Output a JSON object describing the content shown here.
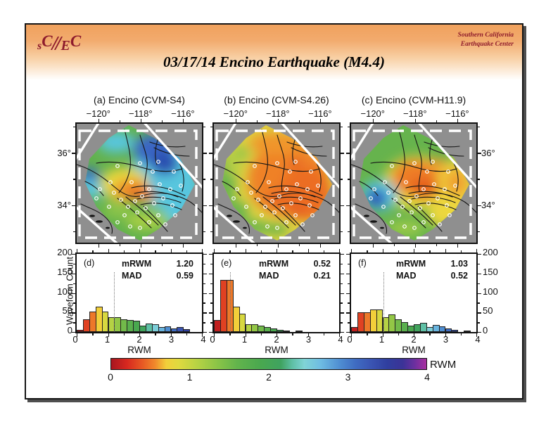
{
  "header": {
    "logo_part1": "s",
    "logo_part2": "C",
    "logo_part3": "E",
    "logo_part4": "C",
    "org_line1": "Southern California",
    "org_line2": "Earthquake Center",
    "title": "03/17/14 Encino Earthquake (M4.4)",
    "brand_color": "#8e1b2c"
  },
  "maps": {
    "lon_ticks": [
      "−120°",
      "−118°",
      "−116°"
    ],
    "lat_ticks": [
      "36°",
      "34°"
    ],
    "panels": [
      {
        "label": "(a) Encino (CVM-S4)"
      },
      {
        "label": "(b) Encino (CVM-S4.26)"
      },
      {
        "label": "(c) Encino (CVM-H11.9)"
      }
    ]
  },
  "chart_data": [
    {
      "type": "bar",
      "panel_label": "(d)",
      "bin_start": 0,
      "bin_width": 0.2,
      "values": [
        5,
        33,
        52,
        65,
        53,
        38,
        37,
        33,
        31,
        29,
        16,
        22,
        20,
        12,
        15,
        9,
        13,
        7
      ],
      "xlabel": "RWM",
      "ylabel": "Waveform Count",
      "xlim": [
        0,
        4
      ],
      "ylim": [
        0,
        200
      ],
      "xticks": [
        "0",
        "1",
        "2",
        "3",
        "4"
      ],
      "yticks": [
        "0",
        "50",
        "100",
        "150",
        "200"
      ],
      "stats": {
        "rows": [
          {
            "label": "mRWM",
            "value": "1.20"
          },
          {
            "label": "MAD",
            "value": "0.59"
          }
        ]
      }
    },
    {
      "type": "bar",
      "panel_label": "(e)",
      "bin_start": 0,
      "bin_width": 0.2,
      "values": [
        30,
        133,
        133,
        65,
        46,
        20,
        20,
        16,
        13,
        9,
        6,
        4,
        0,
        4
      ],
      "xlabel": "RWM",
      "ylabel": "Waveform Count",
      "xlim": [
        0,
        4
      ],
      "ylim": [
        0,
        200
      ],
      "xticks": [
        "0",
        "1",
        "2",
        "3",
        "4"
      ],
      "yticks": [
        "0",
        "50",
        "100",
        "150",
        "200"
      ],
      "stats": {
        "rows": [
          {
            "label": "mRWM",
            "value": "0.52"
          },
          {
            "label": "MAD",
            "value": "0.21"
          }
        ]
      }
    },
    {
      "type": "bar",
      "panel_label": "(f)",
      "bin_start": 0,
      "bin_width": 0.2,
      "values": [
        12,
        50,
        50,
        57,
        57,
        38,
        45,
        32,
        26,
        16,
        20,
        24,
        12,
        18,
        14,
        9,
        5,
        0,
        2
      ],
      "xlabel": "RWM",
      "ylabel": "Waveform Count",
      "xlim": [
        0,
        4
      ],
      "ylim": [
        0,
        200
      ],
      "xticks": [
        "0",
        "1",
        "2",
        "3",
        "4"
      ],
      "yticks": [
        "0",
        "50",
        "100",
        "150",
        "200"
      ],
      "stats": {
        "rows": [
          {
            "label": "mRWM",
            "value": "1.03"
          },
          {
            "label": "MAD",
            "value": "0.52"
          }
        ]
      }
    }
  ],
  "colorbar": {
    "label": "RWM",
    "ticks": [
      "0",
      "1",
      "2",
      "3",
      "4"
    ],
    "min": 0,
    "max": 4,
    "gradient_stops": [
      [
        0.0,
        "#a8161f"
      ],
      [
        0.2,
        "#d7281f"
      ],
      [
        0.4,
        "#e85a24"
      ],
      [
        0.55,
        "#f0872b"
      ],
      [
        0.7,
        "#f2cf3a"
      ],
      [
        0.85,
        "#e0da3f"
      ],
      [
        1.1,
        "#b5d244"
      ],
      [
        1.35,
        "#8ac447"
      ],
      [
        1.6,
        "#62b44c"
      ],
      [
        1.9,
        "#49a84f"
      ],
      [
        2.15,
        "#3fa360"
      ],
      [
        2.3,
        "#5fc0a6"
      ],
      [
        2.45,
        "#80d4d6"
      ],
      [
        2.65,
        "#6fbde2"
      ],
      [
        2.9,
        "#4f8ed2"
      ],
      [
        3.1,
        "#3f6cc2"
      ],
      [
        3.3,
        "#3a54b2"
      ],
      [
        3.5,
        "#303f9f"
      ],
      [
        3.7,
        "#3b3397"
      ],
      [
        3.85,
        "#6c2f9f"
      ],
      [
        4.0,
        "#a92fa0"
      ]
    ]
  }
}
